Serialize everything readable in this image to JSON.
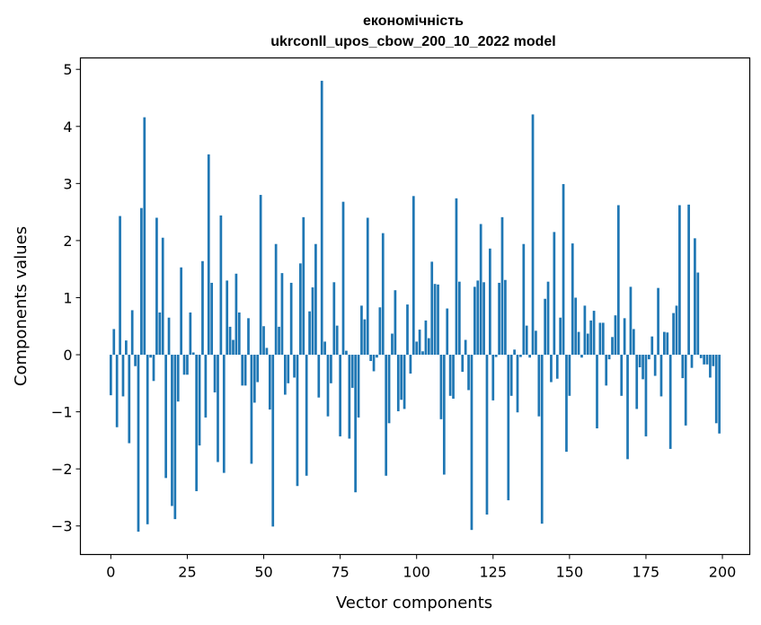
{
  "chart_data": {
    "type": "bar",
    "title_line1": "економічність",
    "title_line2": "ukrconll_upos_cbow_200_10_2022 model",
    "xlabel": "Vector components",
    "ylabel": "Components values",
    "xlim": [
      -9.95,
      208.95
    ],
    "ylim": [
      -3.5,
      5.2
    ],
    "x_ticks": [
      0,
      25,
      50,
      75,
      100,
      125,
      150,
      175,
      200
    ],
    "y_ticks": [
      -3,
      -2,
      -1,
      0,
      1,
      2,
      3,
      4,
      5
    ],
    "y_tick_labels": [
      "−3",
      "−2",
      "−1",
      "0",
      "1",
      "2",
      "3",
      "4",
      "5"
    ],
    "grid": false,
    "bar_color": "#1f77b4",
    "values": [
      -0.71,
      0.45,
      -1.27,
      2.43,
      -0.73,
      0.25,
      -1.55,
      0.78,
      -0.2,
      -3.1,
      2.57,
      4.16,
      -2.97,
      -0.05,
      -0.46,
      2.4,
      0.74,
      2.05,
      -2.16,
      0.65,
      -2.65,
      -2.88,
      -0.82,
      1.53,
      -0.35,
      -0.35,
      0.74,
      0.04,
      -2.39,
      -1.59,
      1.64,
      -1.1,
      3.51,
      1.26,
      -0.66,
      -1.88,
      2.44,
      -2.07,
      1.3,
      0.49,
      0.26,
      1.42,
      0.74,
      -0.54,
      -0.54,
      0.64,
      -1.91,
      -0.84,
      -0.48,
      2.8,
      0.5,
      0.12,
      -0.96,
      -3.01,
      1.94,
      0.49,
      1.43,
      -0.7,
      -0.5,
      1.26,
      -0.4,
      -2.3,
      1.6,
      2.41,
      -2.12,
      0.76,
      1.18,
      1.94,
      -0.75,
      4.8,
      0.23,
      -1.08,
      -0.5,
      1.27,
      0.51,
      -1.43,
      2.68,
      0.07,
      -1.47,
      -0.58,
      -2.41,
      -1.1,
      0.86,
      0.62,
      2.4,
      -0.11,
      -0.29,
      -0.05,
      0.83,
      2.13,
      -2.12,
      -1.2,
      0.37,
      1.13,
      -0.99,
      -0.79,
      -0.95,
      0.88,
      -0.33,
      2.78,
      0.23,
      0.44,
      0.06,
      0.6,
      0.29,
      1.63,
      1.24,
      1.23,
      -1.13,
      -2.1,
      0.81,
      -0.72,
      -0.77,
      2.74,
      1.28,
      -0.3,
      0.26,
      -0.62,
      -3.07,
      1.19,
      1.3,
      2.29,
      1.27,
      -2.8,
      1.86,
      -0.8,
      -0.04,
      1.26,
      2.41,
      1.31,
      -2.55,
      -0.72,
      0.09,
      -1.01,
      -0.04,
      1.94,
      0.51,
      -0.05,
      4.21,
      0.42,
      -1.08,
      -2.96,
      0.98,
      1.28,
      -0.48,
      2.15,
      -0.42,
      0.65,
      2.99,
      -1.7,
      -0.72,
      1.95,
      1.0,
      0.4,
      -0.05,
      0.86,
      0.37,
      0.6,
      0.77,
      -1.29,
      0.56,
      0.56,
      -0.54,
      -0.08,
      0.31,
      0.69,
      2.62,
      -0.72,
      0.64,
      -1.83,
      1.19,
      0.45,
      -0.95,
      -0.22,
      -0.43,
      -1.43,
      -0.08,
      0.32,
      -0.37,
      1.17,
      -0.73,
      0.4,
      0.39,
      -1.65,
      0.73,
      0.86,
      2.62,
      -0.41,
      -1.24,
      2.63,
      -0.23,
      2.04,
      1.44,
      -0.06,
      -0.17,
      -0.17,
      -0.4,
      -0.2,
      -1.2,
      -1.38
    ]
  }
}
